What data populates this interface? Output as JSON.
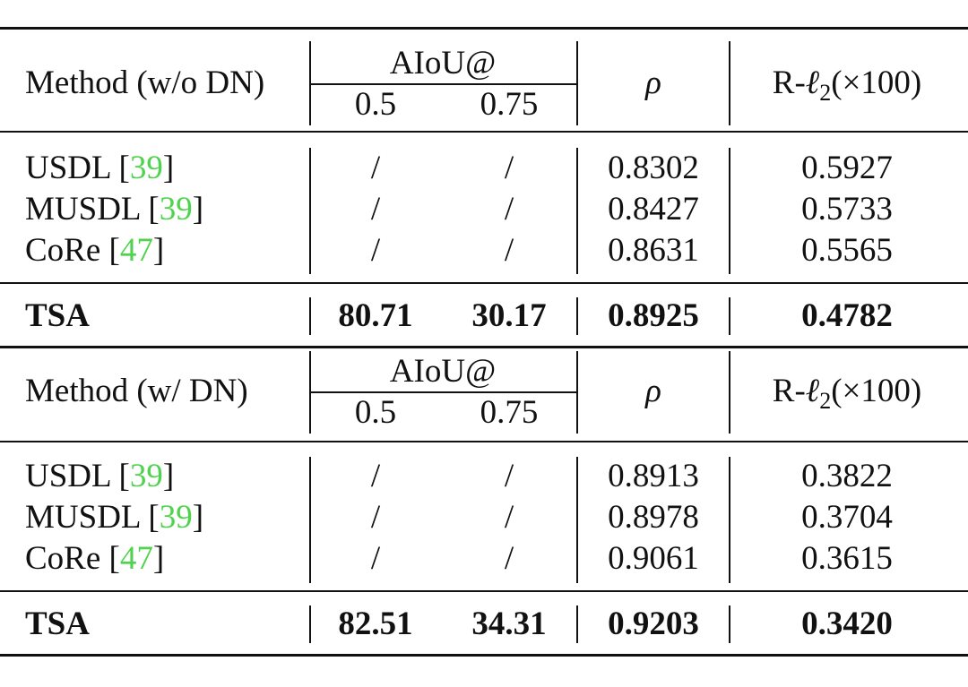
{
  "header": {
    "aiou_label": "AIoU@",
    "thr1": "0.5",
    "thr2": "0.75",
    "rho": "ρ",
    "rl2_prefix": "R-",
    "rl2_ell": "ℓ",
    "rl2_sub": "2",
    "rl2_suffix": "(×100)"
  },
  "sections": [
    {
      "method_header": "Method (w/o DN)",
      "rows": [
        {
          "name": "USDL",
          "cite_open": "[",
          "cite": "39",
          "cite_close": "]",
          "a05": "/",
          "a075": "/",
          "rho": "0.8302",
          "rl2": "0.5927"
        },
        {
          "name": "MUSDL",
          "cite_open": "[",
          "cite": "39",
          "cite_close": "]",
          "a05": "/",
          "a075": "/",
          "rho": "0.8427",
          "rl2": "0.5733"
        },
        {
          "name": "CoRe",
          "cite_open": "[",
          "cite": "47",
          "cite_close": "]",
          "a05": "/",
          "a075": "/",
          "rho": "0.8631",
          "rl2": "0.5565"
        }
      ],
      "tsa": {
        "name": "TSA",
        "a05": "80.71",
        "a075": "30.17",
        "rho": "0.8925",
        "rl2": "0.4782"
      }
    },
    {
      "method_header": "Method (w/ DN)",
      "rows": [
        {
          "name": "USDL",
          "cite_open": "[",
          "cite": "39",
          "cite_close": "]",
          "a05": "/",
          "a075": "/",
          "rho": "0.8913",
          "rl2": "0.3822"
        },
        {
          "name": "MUSDL",
          "cite_open": "[",
          "cite": "39",
          "cite_close": "]",
          "a05": "/",
          "a075": "/",
          "rho": "0.8978",
          "rl2": "0.3704"
        },
        {
          "name": "CoRe",
          "cite_open": "[",
          "cite": "47",
          "cite_close": "]",
          "a05": "/",
          "a075": "/",
          "rho": "0.9061",
          "rl2": "0.3615"
        }
      ],
      "tsa": {
        "name": "TSA",
        "a05": "82.51",
        "a075": "34.31",
        "rho": "0.9203",
        "rl2": "0.3420"
      }
    }
  ]
}
